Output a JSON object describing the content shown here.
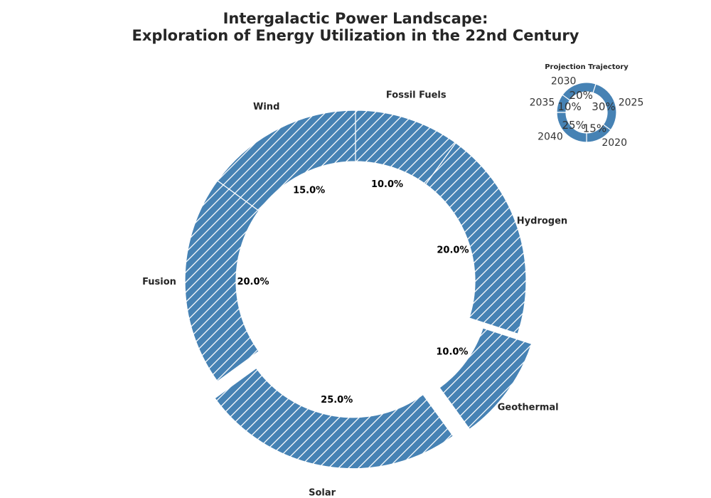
{
  "colors": {
    "wedge": "#4682b4",
    "edge": "#ffffff",
    "hatch": "#ffffff"
  },
  "chart_data": [
    {
      "type": "pie",
      "title_lines": [
        "Intergalactic Power Landscape:",
        "Exploration of Energy Utilization in the 22nd Century"
      ],
      "categories": [
        "Fossil Fuels",
        "Hydrogen",
        "Geothermal",
        "Solar",
        "Fusion",
        "Wind"
      ],
      "values": [
        10.0,
        20.0,
        10.0,
        25.0,
        20.0,
        15.0
      ],
      "value_labels": [
        "10.0%",
        "20.0%",
        "10.0%",
        "25.0%",
        "20.0%",
        "15.0%"
      ],
      "exploded": [
        false,
        false,
        true,
        true,
        false,
        false
      ],
      "donut": true,
      "hatch": "diagonal"
    },
    {
      "type": "pie",
      "title": "Projection Trajectory",
      "categories": [
        "2020",
        "2025",
        "2030",
        "2035",
        "2040"
      ],
      "values": [
        15,
        30,
        20,
        10,
        25
      ],
      "value_labels": [
        "15%",
        "30%",
        "20%",
        "10%",
        "25%"
      ],
      "donut": true
    }
  ]
}
